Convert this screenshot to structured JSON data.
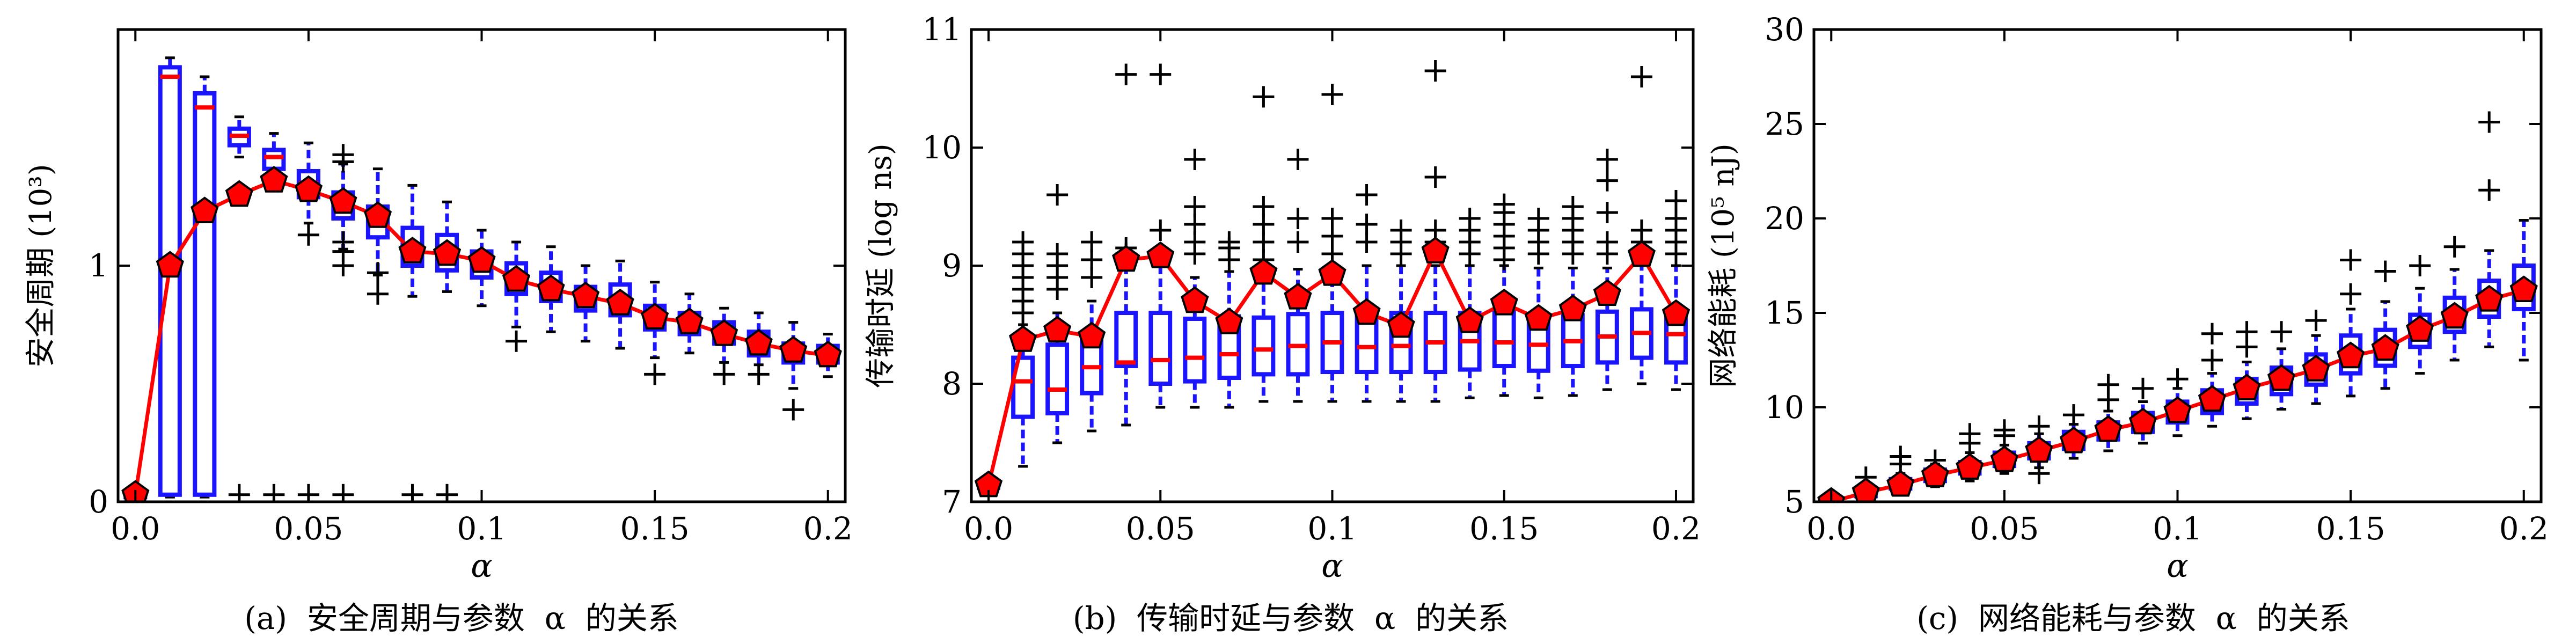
{
  "chart_data": [
    {
      "type": "box",
      "caption": "(a)  安全周期与参数  α  的关系",
      "xlabel": "α",
      "ylabel": "安全周期  (10³)",
      "xlim": [
        -0.005,
        0.205
      ],
      "ylim": [
        0,
        2.0
      ],
      "xticks": [
        0.0,
        0.05,
        0.1,
        0.15,
        0.2
      ],
      "xtick_labels": [
        "0.0",
        "0.05",
        "0.1",
        "0.15",
        "0.2"
      ],
      "yticks": [
        0,
        1
      ],
      "ytick_labels": [
        "0",
        "1"
      ],
      "x": [
        0.0,
        0.01,
        0.02,
        0.03,
        0.04,
        0.05,
        0.06,
        0.07,
        0.08,
        0.09,
        0.1,
        0.11,
        0.12,
        0.13,
        0.14,
        0.15,
        0.16,
        0.17,
        0.18,
        0.19,
        0.2
      ],
      "mean_line": [
        0.03,
        1.0,
        1.23,
        1.3,
        1.36,
        1.32,
        1.27,
        1.21,
        1.06,
        1.05,
        1.02,
        0.94,
        0.9,
        0.87,
        0.84,
        0.78,
        0.76,
        0.71,
        0.67,
        0.64,
        0.62
      ],
      "boxes": [
        {
          "q1": 0.02,
          "median": 0.02,
          "q3": 0.04,
          "whislo": 0.01,
          "whishi": 0.05,
          "fliers": []
        },
        {
          "q1": 0.03,
          "median": 1.8,
          "q3": 1.84,
          "whislo": 0.02,
          "whishi": 1.88,
          "fliers": []
        },
        {
          "q1": 0.03,
          "median": 1.67,
          "q3": 1.73,
          "whislo": 0.02,
          "whishi": 1.8,
          "fliers": []
        },
        {
          "q1": 1.51,
          "median": 1.55,
          "q3": 1.58,
          "whislo": 1.46,
          "whishi": 1.63,
          "fliers": [
            0.03
          ]
        },
        {
          "q1": 1.41,
          "median": 1.46,
          "q3": 1.49,
          "whislo": 1.33,
          "whishi": 1.56,
          "fliers": [
            0.03
          ]
        },
        {
          "q1": 1.29,
          "median": 1.35,
          "q3": 1.4,
          "whislo": 1.18,
          "whishi": 1.52,
          "fliers": [
            0.03,
            1.13
          ]
        },
        {
          "q1": 1.2,
          "median": 1.27,
          "q3": 1.31,
          "whislo": 1.07,
          "whishi": 1.43,
          "fliers": [
            0.03,
            1.0,
            1.06,
            1.1,
            1.44,
            1.47
          ]
        },
        {
          "q1": 1.12,
          "median": 1.2,
          "q3": 1.25,
          "whislo": 0.96,
          "whishi": 1.41,
          "fliers": [
            0.88,
            0.97
          ]
        },
        {
          "q1": 1.0,
          "median": 1.07,
          "q3": 1.16,
          "whislo": 0.87,
          "whishi": 1.34,
          "fliers": [
            0.03
          ]
        },
        {
          "q1": 0.98,
          "median": 1.05,
          "q3": 1.13,
          "whislo": 0.89,
          "whishi": 1.27,
          "fliers": [
            0.03
          ]
        },
        {
          "q1": 0.95,
          "median": 1.02,
          "q3": 1.06,
          "whislo": 0.83,
          "whishi": 1.15,
          "fliers": []
        },
        {
          "q1": 0.88,
          "median": 0.93,
          "q3": 1.01,
          "whislo": 0.74,
          "whishi": 1.1,
          "fliers": [
            0.68
          ]
        },
        {
          "q1": 0.85,
          "median": 0.9,
          "q3": 0.97,
          "whislo": 0.72,
          "whishi": 1.08,
          "fliers": []
        },
        {
          "q1": 0.81,
          "median": 0.86,
          "q3": 0.91,
          "whislo": 0.68,
          "whishi": 1.0,
          "fliers": []
        },
        {
          "q1": 0.79,
          "median": 0.84,
          "q3": 0.92,
          "whislo": 0.65,
          "whishi": 1.02,
          "fliers": []
        },
        {
          "q1": 0.73,
          "median": 0.77,
          "q3": 0.83,
          "whislo": 0.61,
          "whishi": 0.93,
          "fliers": [
            0.54
          ]
        },
        {
          "q1": 0.71,
          "median": 0.76,
          "q3": 0.8,
          "whislo": 0.63,
          "whishi": 0.88,
          "fliers": []
        },
        {
          "q1": 0.67,
          "median": 0.71,
          "q3": 0.76,
          "whislo": 0.59,
          "whishi": 0.82,
          "fliers": [
            0.54
          ]
        },
        {
          "q1": 0.62,
          "median": 0.68,
          "q3": 0.72,
          "whislo": 0.58,
          "whishi": 0.8,
          "fliers": [
            0.54
          ]
        },
        {
          "q1": 0.59,
          "median": 0.63,
          "q3": 0.67,
          "whislo": 0.48,
          "whishi": 0.76,
          "fliers": [
            0.39
          ]
        },
        {
          "q1": 0.59,
          "median": 0.62,
          "q3": 0.66,
          "whislo": 0.53,
          "whishi": 0.71,
          "fliers": []
        }
      ]
    },
    {
      "type": "box",
      "caption": "(b)  传输时延与参数  α  的关系",
      "xlabel": "α",
      "ylabel": "传输时延  (log  ns)",
      "xlim": [
        -0.005,
        0.205
      ],
      "ylim": [
        7,
        11
      ],
      "xticks": [
        0.0,
        0.05,
        0.1,
        0.15,
        0.2
      ],
      "xtick_labels": [
        "0.0",
        "0.05",
        "0.1",
        "0.15",
        "0.2"
      ],
      "yticks": [
        7,
        8,
        9,
        10,
        11
      ],
      "ytick_labels": [
        "7",
        "8",
        "9",
        "10",
        "11"
      ],
      "x": [
        0.0,
        0.01,
        0.02,
        0.03,
        0.04,
        0.05,
        0.06,
        0.07,
        0.08,
        0.09,
        0.1,
        0.11,
        0.12,
        0.13,
        0.14,
        0.15,
        0.16,
        0.17,
        0.18,
        0.19,
        0.2
      ],
      "mean_line": [
        7.14,
        8.37,
        8.45,
        8.4,
        9.05,
        9.08,
        8.7,
        8.52,
        8.94,
        8.73,
        8.93,
        8.6,
        8.49,
        9.12,
        8.53,
        8.68,
        8.55,
        8.63,
        8.76,
        9.09,
        8.59
      ],
      "boxes": [
        {
          "q1": 7.12,
          "median": 7.14,
          "q3": 7.16,
          "whislo": 7.1,
          "whishi": 7.18,
          "fliers": []
        },
        {
          "q1": 7.72,
          "median": 8.02,
          "q3": 8.22,
          "whislo": 7.3,
          "whishi": 8.5,
          "fliers": [
            8.6,
            8.7,
            8.8,
            8.9,
            9.0,
            9.1,
            9.2
          ]
        },
        {
          "q1": 7.75,
          "median": 7.95,
          "q3": 8.33,
          "whislo": 7.5,
          "whishi": 8.6,
          "fliers": [
            8.8,
            8.9,
            9.0,
            9.1,
            9.6
          ]
        },
        {
          "q1": 7.92,
          "median": 8.14,
          "q3": 8.38,
          "whislo": 7.6,
          "whishi": 8.7,
          "fliers": [
            8.9,
            9.05,
            9.2
          ]
        },
        {
          "q1": 8.15,
          "median": 8.18,
          "q3": 8.6,
          "whislo": 7.65,
          "whishi": 9.0,
          "fliers": [
            9.1,
            9.15,
            10.62
          ]
        },
        {
          "q1": 8.0,
          "median": 8.2,
          "q3": 8.6,
          "whislo": 7.8,
          "whishi": 9.0,
          "fliers": [
            9.1,
            9.3,
            10.62
          ]
        },
        {
          "q1": 8.02,
          "median": 8.22,
          "q3": 8.55,
          "whislo": 7.8,
          "whishi": 8.9,
          "fliers": [
            9.1,
            9.2,
            9.35,
            9.5,
            9.9
          ]
        },
        {
          "q1": 8.05,
          "median": 8.25,
          "q3": 8.57,
          "whislo": 7.8,
          "whishi": 8.95,
          "fliers": [
            9.05,
            9.15,
            9.2
          ]
        },
        {
          "q1": 8.08,
          "median": 8.29,
          "q3": 8.56,
          "whislo": 7.85,
          "whishi": 8.93,
          "fliers": [
            9.05,
            9.2,
            9.35,
            9.5,
            10.43
          ]
        },
        {
          "q1": 8.08,
          "median": 8.32,
          "q3": 8.59,
          "whislo": 7.85,
          "whishi": 8.97,
          "fliers": [
            9.2,
            9.4,
            9.9
          ]
        },
        {
          "q1": 8.1,
          "median": 8.35,
          "q3": 8.6,
          "whislo": 7.85,
          "whishi": 9.0,
          "fliers": [
            9.1,
            9.25,
            9.4,
            10.45
          ]
        },
        {
          "q1": 8.1,
          "median": 8.31,
          "q3": 8.6,
          "whislo": 7.85,
          "whishi": 9.0,
          "fliers": [
            9.2,
            9.35,
            9.6
          ]
        },
        {
          "q1": 8.1,
          "median": 8.32,
          "q3": 8.6,
          "whislo": 7.85,
          "whishi": 9.0,
          "fliers": [
            9.1,
            9.2,
            9.3
          ]
        },
        {
          "q1": 8.1,
          "median": 8.35,
          "q3": 8.6,
          "whislo": 7.85,
          "whishi": 9.0,
          "fliers": [
            9.2,
            9.3,
            9.75,
            10.65
          ]
        },
        {
          "q1": 8.12,
          "median": 8.36,
          "q3": 8.6,
          "whislo": 7.88,
          "whishi": 9.0,
          "fliers": [
            9.1,
            9.2,
            9.3,
            9.4
          ]
        },
        {
          "q1": 8.15,
          "median": 8.35,
          "q3": 8.61,
          "whislo": 7.9,
          "whishi": 9.0,
          "fliers": [
            9.05,
            9.15,
            9.25,
            9.35,
            9.45,
            9.52
          ]
        },
        {
          "q1": 8.11,
          "median": 8.33,
          "q3": 8.58,
          "whislo": 7.88,
          "whishi": 8.98,
          "fliers": [
            9.1,
            9.2,
            9.3,
            9.4
          ]
        },
        {
          "q1": 8.15,
          "median": 8.36,
          "q3": 8.58,
          "whislo": 7.9,
          "whishi": 8.98,
          "fliers": [
            9.1,
            9.2,
            9.3,
            9.4,
            9.5
          ]
        },
        {
          "q1": 8.18,
          "median": 8.4,
          "q3": 8.61,
          "whislo": 7.95,
          "whishi": 8.98,
          "fliers": [
            9.1,
            9.2,
            9.45,
            9.72,
            9.9
          ]
        },
        {
          "q1": 8.22,
          "median": 8.43,
          "q3": 8.63,
          "whislo": 8.0,
          "whishi": 9.0,
          "fliers": [
            9.1,
            9.2,
            9.3,
            10.6
          ]
        },
        {
          "q1": 8.18,
          "median": 8.42,
          "q3": 8.62,
          "whislo": 7.95,
          "whishi": 9.0,
          "fliers": [
            9.1,
            9.2,
            9.3,
            9.4,
            9.55
          ]
        }
      ]
    },
    {
      "type": "box",
      "caption": "(c)  网络能耗与参数  α  的关系",
      "xlabel": "α",
      "ylabel": "网络能耗  (10⁵  nJ)",
      "xlim": [
        -0.005,
        0.205
      ],
      "ylim": [
        5,
        30
      ],
      "xticks": [
        0.0,
        0.05,
        0.1,
        0.15,
        0.2
      ],
      "xtick_labels": [
        "0.0",
        "0.05",
        "0.1",
        "0.15",
        "0.2"
      ],
      "yticks": [
        5,
        10,
        15,
        20,
        25,
        30
      ],
      "ytick_labels": [
        "5",
        "10",
        "15",
        "20",
        "25",
        "30"
      ],
      "x": [
        0.0,
        0.01,
        0.02,
        0.03,
        0.04,
        0.05,
        0.06,
        0.07,
        0.08,
        0.09,
        0.1,
        0.11,
        0.12,
        0.13,
        0.14,
        0.15,
        0.16,
        0.17,
        0.18,
        0.19,
        0.2
      ],
      "mean_line": [
        5.0,
        5.5,
        5.9,
        6.4,
        6.8,
        7.2,
        7.7,
        8.2,
        8.8,
        9.2,
        9.8,
        10.4,
        11.0,
        11.5,
        12.0,
        12.7,
        13.1,
        14.1,
        14.8,
        15.7,
        16.2
      ],
      "boxes": [
        {
          "q1": 4.9,
          "median": 5.0,
          "q3": 5.1,
          "whislo": 4.8,
          "whishi": 5.2,
          "fliers": []
        },
        {
          "q1": 5.3,
          "median": 5.5,
          "q3": 5.7,
          "whislo": 5.1,
          "whishi": 5.9,
          "fliers": [
            6.3
          ]
        },
        {
          "q1": 5.7,
          "median": 5.9,
          "q3": 6.2,
          "whislo": 5.4,
          "whishi": 6.5,
          "fliers": [
            7.0,
            7.4
          ]
        },
        {
          "q1": 6.1,
          "median": 6.4,
          "q3": 6.7,
          "whislo": 5.8,
          "whishi": 7.0,
          "fliers": [
            7.2
          ]
        },
        {
          "q1": 6.5,
          "median": 6.8,
          "q3": 7.1,
          "whislo": 6.1,
          "whishi": 7.6,
          "fliers": [
            8.1,
            8.6
          ]
        },
        {
          "q1": 6.9,
          "median": 7.2,
          "q3": 7.6,
          "whislo": 6.5,
          "whishi": 8.0,
          "fliers": [
            8.5,
            8.8
          ]
        },
        {
          "q1": 7.3,
          "median": 7.6,
          "q3": 8.1,
          "whislo": 6.8,
          "whishi": 8.6,
          "fliers": [
            9.0,
            6.5
          ]
        },
        {
          "q1": 7.8,
          "median": 8.2,
          "q3": 8.7,
          "whislo": 7.3,
          "whishi": 9.1,
          "fliers": [
            9.6
          ]
        },
        {
          "q1": 8.3,
          "median": 8.7,
          "q3": 9.2,
          "whislo": 7.7,
          "whishi": 9.8,
          "fliers": [
            10.4,
            11.2
          ]
        },
        {
          "q1": 8.7,
          "median": 9.2,
          "q3": 9.7,
          "whislo": 8.1,
          "whishi": 10.3,
          "fliers": [
            11.0
          ]
        },
        {
          "q1": 9.2,
          "median": 9.7,
          "q3": 10.3,
          "whislo": 8.5,
          "whishi": 11.0,
          "fliers": [
            11.5
          ]
        },
        {
          "q1": 9.7,
          "median": 10.3,
          "q3": 10.9,
          "whislo": 9.0,
          "whishi": 11.8,
          "fliers": [
            12.5,
            13.9
          ]
        },
        {
          "q1": 10.2,
          "median": 10.8,
          "q3": 11.5,
          "whislo": 9.4,
          "whishi": 12.4,
          "fliers": [
            13.2,
            14.0
          ]
        },
        {
          "q1": 10.7,
          "median": 11.4,
          "q3": 12.1,
          "whislo": 9.9,
          "whishi": 13.1,
          "fliers": [
            14.0
          ]
        },
        {
          "q1": 11.2,
          "median": 11.9,
          "q3": 12.8,
          "whislo": 10.2,
          "whishi": 13.8,
          "fliers": [
            14.6
          ]
        },
        {
          "q1": 11.8,
          "median": 12.6,
          "q3": 13.8,
          "whislo": 10.6,
          "whishi": 15.2,
          "fliers": [
            16.0,
            17.8
          ]
        },
        {
          "q1": 12.2,
          "median": 13.0,
          "q3": 14.1,
          "whislo": 11.0,
          "whishi": 15.6,
          "fliers": [
            17.2
          ]
        },
        {
          "q1": 13.2,
          "median": 14.0,
          "q3": 14.9,
          "whislo": 11.8,
          "whishi": 16.3,
          "fliers": [
            17.5
          ]
        },
        {
          "q1": 14.0,
          "median": 14.8,
          "q3": 15.8,
          "whislo": 12.5,
          "whishi": 17.3,
          "fliers": [
            18.5
          ]
        },
        {
          "q1": 14.8,
          "median": 15.7,
          "q3": 16.7,
          "whislo": 13.2,
          "whishi": 18.3,
          "fliers": [
            21.5,
            25.1
          ]
        },
        {
          "q1": 15.2,
          "median": 16.2,
          "q3": 17.5,
          "whislo": 12.5,
          "whishi": 19.9,
          "fliers": []
        }
      ]
    }
  ]
}
